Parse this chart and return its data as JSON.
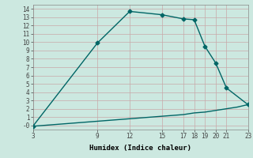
{
  "xlabel": "Humidex (Indice chaleur)",
  "ylabel": "",
  "bg_color": "#cce8e0",
  "grid_color": "#c8a8a8",
  "line_color": "#006666",
  "upper_x": [
    3,
    9,
    12,
    15,
    17,
    18,
    19,
    20,
    21,
    23
  ],
  "upper_y": [
    -0.1,
    9.9,
    13.7,
    13.3,
    12.8,
    12.7,
    9.5,
    7.5,
    4.5,
    2.5
  ],
  "lower_x": [
    3,
    4,
    5,
    6,
    7,
    8,
    9,
    10,
    11,
    12,
    13,
    14,
    15,
    16,
    17,
    18,
    19,
    20,
    21,
    22,
    23
  ],
  "lower_y": [
    -0.1,
    0.0,
    0.1,
    0.2,
    0.3,
    0.4,
    0.5,
    0.6,
    0.7,
    0.8,
    0.9,
    1.0,
    1.1,
    1.2,
    1.3,
    1.5,
    1.6,
    1.8,
    2.0,
    2.2,
    2.5
  ],
  "xlim": [
    3,
    23
  ],
  "ylim": [
    -0.5,
    14.5
  ],
  "xticks": [
    3,
    9,
    12,
    15,
    17,
    18,
    19,
    20,
    21,
    23
  ],
  "yticks": [
    0,
    1,
    2,
    3,
    4,
    5,
    6,
    7,
    8,
    9,
    10,
    11,
    12,
    13,
    14
  ],
  "ytick_labels": [
    "-0",
    "1",
    "2",
    "3",
    "4",
    "5",
    "6",
    "7",
    "8",
    "9",
    "10",
    "11",
    "12",
    "13",
    "14"
  ],
  "marker": "D",
  "markersize": 2.5,
  "linewidth": 1.0,
  "tick_fontsize": 5.5,
  "label_fontsize": 6.5,
  "title_fontsize": 8
}
